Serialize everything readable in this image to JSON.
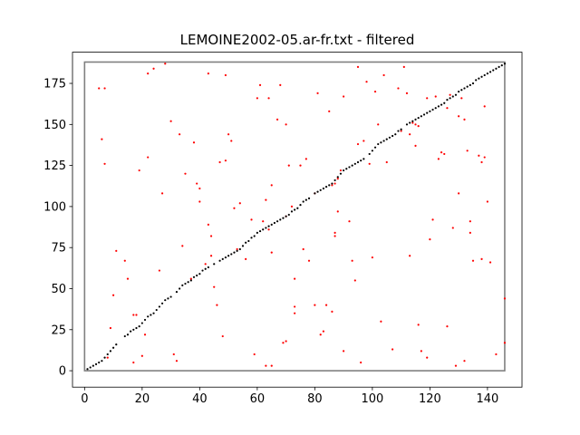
{
  "chart_data": {
    "type": "scatter",
    "title": "LEMOINE2002-05.ar-fr.txt - filtered",
    "xlabel": "",
    "ylabel": "",
    "xlim": [
      -4.2,
      152
    ],
    "ylim": [
      -10,
      194
    ],
    "xticks": [
      0,
      20,
      40,
      60,
      80,
      100,
      120,
      140
    ],
    "yticks": [
      0,
      25,
      50,
      75,
      100,
      125,
      150,
      175
    ],
    "grid": false,
    "legend": "none",
    "box": {
      "x0": 0,
      "y0": 0,
      "x1": 146,
      "y1": 188,
      "color": "#808080"
    },
    "series": [
      {
        "color": "#000000",
        "points": [
          [
            1,
            1
          ],
          [
            2,
            2
          ],
          [
            3,
            3
          ],
          [
            4,
            4
          ],
          [
            5,
            5
          ],
          [
            6,
            6
          ],
          [
            7,
            8
          ],
          [
            8,
            10
          ],
          [
            9,
            12
          ],
          [
            10,
            14
          ],
          [
            11,
            16
          ],
          [
            14,
            21
          ],
          [
            15,
            22
          ],
          [
            16,
            24
          ],
          [
            17,
            25
          ],
          [
            18,
            26
          ],
          [
            19,
            27
          ],
          [
            20,
            29
          ],
          [
            21,
            31
          ],
          [
            22,
            33
          ],
          [
            23,
            34
          ],
          [
            24,
            35
          ],
          [
            25,
            37
          ],
          [
            26,
            39
          ],
          [
            27,
            41
          ],
          [
            28,
            43
          ],
          [
            29,
            44
          ],
          [
            30,
            45
          ],
          [
            32,
            48
          ],
          [
            33,
            50
          ],
          [
            34,
            52
          ],
          [
            35,
            53
          ],
          [
            36,
            54
          ],
          [
            37,
            55
          ],
          [
            38,
            57
          ],
          [
            39,
            58
          ],
          [
            40,
            59
          ],
          [
            41,
            61
          ],
          [
            42,
            62
          ],
          [
            43,
            63
          ],
          [
            45,
            65
          ],
          [
            47,
            67
          ],
          [
            48,
            68
          ],
          [
            49,
            69
          ],
          [
            50,
            70
          ],
          [
            51,
            71
          ],
          [
            52,
            72
          ],
          [
            53,
            73
          ],
          [
            54,
            74
          ],
          [
            55,
            76
          ],
          [
            56,
            78
          ],
          [
            57,
            79
          ],
          [
            58,
            81
          ],
          [
            59,
            82
          ],
          [
            60,
            84
          ],
          [
            61,
            85
          ],
          [
            62,
            86
          ],
          [
            63,
            87
          ],
          [
            64,
            88
          ],
          [
            65,
            89
          ],
          [
            66,
            90
          ],
          [
            67,
            91
          ],
          [
            68,
            92
          ],
          [
            69,
            93
          ],
          [
            70,
            94
          ],
          [
            71,
            95
          ],
          [
            72,
            97
          ],
          [
            73,
            98
          ],
          [
            74,
            99
          ],
          [
            75,
            101
          ],
          [
            76,
            103
          ],
          [
            77,
            104
          ],
          [
            78,
            105
          ],
          [
            80,
            108
          ],
          [
            81,
            109
          ],
          [
            82,
            110
          ],
          [
            83,
            111
          ],
          [
            84,
            112
          ],
          [
            85,
            113
          ],
          [
            86,
            114
          ],
          [
            87,
            116
          ],
          [
            88,
            118
          ],
          [
            89,
            120
          ],
          [
            90,
            122
          ],
          [
            91,
            123
          ],
          [
            92,
            124
          ],
          [
            93,
            125
          ],
          [
            94,
            126
          ],
          [
            95,
            127
          ],
          [
            96,
            128
          ],
          [
            97,
            129
          ],
          [
            99,
            132
          ],
          [
            100,
            134
          ],
          [
            101,
            136
          ],
          [
            102,
            138
          ],
          [
            103,
            139
          ],
          [
            104,
            140
          ],
          [
            105,
            141
          ],
          [
            106,
            142
          ],
          [
            107,
            143
          ],
          [
            108,
            144
          ],
          [
            109,
            146
          ],
          [
            110,
            147
          ],
          [
            112,
            150
          ],
          [
            113,
            151
          ],
          [
            114,
            152
          ],
          [
            115,
            153
          ],
          [
            116,
            154
          ],
          [
            117,
            155
          ],
          [
            118,
            156
          ],
          [
            119,
            157
          ],
          [
            120,
            158
          ],
          [
            121,
            159
          ],
          [
            122,
            160
          ],
          [
            123,
            161
          ],
          [
            124,
            162
          ],
          [
            125,
            163
          ],
          [
            126,
            165
          ],
          [
            127,
            166
          ],
          [
            128,
            167
          ],
          [
            129,
            168
          ],
          [
            130,
            170
          ],
          [
            131,
            171
          ],
          [
            132,
            172
          ],
          [
            133,
            173
          ],
          [
            134,
            174
          ],
          [
            135,
            175
          ],
          [
            136,
            177
          ],
          [
            137,
            178
          ],
          [
            138,
            179
          ],
          [
            139,
            180
          ],
          [
            140,
            181
          ],
          [
            141,
            182
          ],
          [
            142,
            183
          ],
          [
            143,
            184
          ],
          [
            144,
            185
          ],
          [
            145,
            186
          ],
          [
            146,
            187
          ]
        ]
      },
      {
        "color": "#ff0000",
        "points": [
          [
            5,
            172
          ],
          [
            6,
            141
          ],
          [
            7,
            172
          ],
          [
            7,
            126
          ],
          [
            8,
            8
          ],
          [
            9,
            26
          ],
          [
            10,
            46
          ],
          [
            11,
            73
          ],
          [
            14,
            67
          ],
          [
            15,
            56
          ],
          [
            17,
            34
          ],
          [
            17,
            5
          ],
          [
            18,
            34
          ],
          [
            19,
            122
          ],
          [
            20,
            9
          ],
          [
            21,
            22
          ],
          [
            22,
            181
          ],
          [
            22,
            130
          ],
          [
            24,
            184
          ],
          [
            26,
            61
          ],
          [
            27,
            108
          ],
          [
            28,
            187
          ],
          [
            30,
            152
          ],
          [
            31,
            10
          ],
          [
            32,
            6
          ],
          [
            33,
            144
          ],
          [
            34,
            76
          ],
          [
            35,
            120
          ],
          [
            37,
            56
          ],
          [
            38,
            139
          ],
          [
            39,
            114
          ],
          [
            40,
            111
          ],
          [
            40,
            103
          ],
          [
            42,
            65
          ],
          [
            43,
            181
          ],
          [
            43,
            89
          ],
          [
            44,
            82
          ],
          [
            44,
            70
          ],
          [
            45,
            51
          ],
          [
            46,
            40
          ],
          [
            47,
            127
          ],
          [
            48,
            21
          ],
          [
            49,
            128
          ],
          [
            49,
            180
          ],
          [
            50,
            144
          ],
          [
            51,
            140
          ],
          [
            52,
            99
          ],
          [
            53,
            74
          ],
          [
            54,
            102
          ],
          [
            56,
            68
          ],
          [
            58,
            92
          ],
          [
            59,
            10
          ],
          [
            60,
            166
          ],
          [
            61,
            174
          ],
          [
            62,
            91
          ],
          [
            63,
            104
          ],
          [
            64,
            86
          ],
          [
            64,
            166
          ],
          [
            65,
            72
          ],
          [
            65,
            113
          ],
          [
            67,
            153
          ],
          [
            68,
            174
          ],
          [
            69,
            17
          ],
          [
            70,
            18
          ],
          [
            70,
            150
          ],
          [
            71,
            125
          ],
          [
            72,
            100
          ],
          [
            73,
            56
          ],
          [
            75,
            125
          ],
          [
            76,
            74
          ],
          [
            77,
            129
          ],
          [
            78,
            67
          ],
          [
            80,
            40
          ],
          [
            81,
            169
          ],
          [
            82,
            22
          ],
          [
            83,
            24
          ],
          [
            84,
            40
          ],
          [
            85,
            158
          ],
          [
            86,
            36
          ],
          [
            87,
            82
          ],
          [
            87,
            84
          ],
          [
            88,
            97
          ],
          [
            90,
            12
          ],
          [
            90,
            167
          ],
          [
            92,
            91
          ],
          [
            93,
            67
          ],
          [
            94,
            55
          ],
          [
            95,
            185
          ],
          [
            95,
            138
          ],
          [
            96,
            5
          ],
          [
            97,
            140
          ],
          [
            98,
            176
          ],
          [
            99,
            126
          ],
          [
            100,
            69
          ],
          [
            101,
            170
          ],
          [
            102,
            150
          ],
          [
            103,
            30
          ],
          [
            104,
            180
          ],
          [
            105,
            127
          ],
          [
            107,
            13
          ],
          [
            109,
            172
          ],
          [
            111,
            185
          ],
          [
            112,
            169
          ],
          [
            113,
            70
          ],
          [
            115,
            137
          ],
          [
            116,
            28
          ],
          [
            117,
            12
          ],
          [
            119,
            8
          ],
          [
            120,
            80
          ],
          [
            121,
            92
          ],
          [
            122,
            167
          ],
          [
            123,
            129
          ],
          [
            124,
            133
          ],
          [
            125,
            132
          ],
          [
            126,
            27
          ],
          [
            127,
            168
          ],
          [
            128,
            87
          ],
          [
            129,
            3
          ],
          [
            130,
            108
          ],
          [
            131,
            166
          ],
          [
            132,
            6
          ],
          [
            133,
            134
          ],
          [
            134,
            84
          ],
          [
            134,
            91
          ],
          [
            135,
            67
          ],
          [
            137,
            131
          ],
          [
            138,
            68
          ],
          [
            138,
            127
          ],
          [
            139,
            130
          ],
          [
            139,
            161
          ],
          [
            140,
            103
          ],
          [
            141,
            66
          ],
          [
            143,
            10
          ],
          [
            146,
            44
          ],
          [
            146,
            17
          ],
          [
            113,
            144
          ],
          [
            126,
            160
          ],
          [
            130,
            155
          ],
          [
            132,
            153
          ],
          [
            119,
            166
          ],
          [
            110,
            146
          ],
          [
            63,
            3
          ],
          [
            65,
            3
          ],
          [
            70,
            94
          ],
          [
            73,
            39
          ],
          [
            73,
            35
          ],
          [
            114,
            151
          ],
          [
            115,
            150
          ],
          [
            116,
            149
          ],
          [
            80,
            108
          ],
          [
            86,
            113
          ],
          [
            87,
            114
          ],
          [
            88,
            117
          ],
          [
            89,
            122
          ]
        ]
      }
    ]
  }
}
